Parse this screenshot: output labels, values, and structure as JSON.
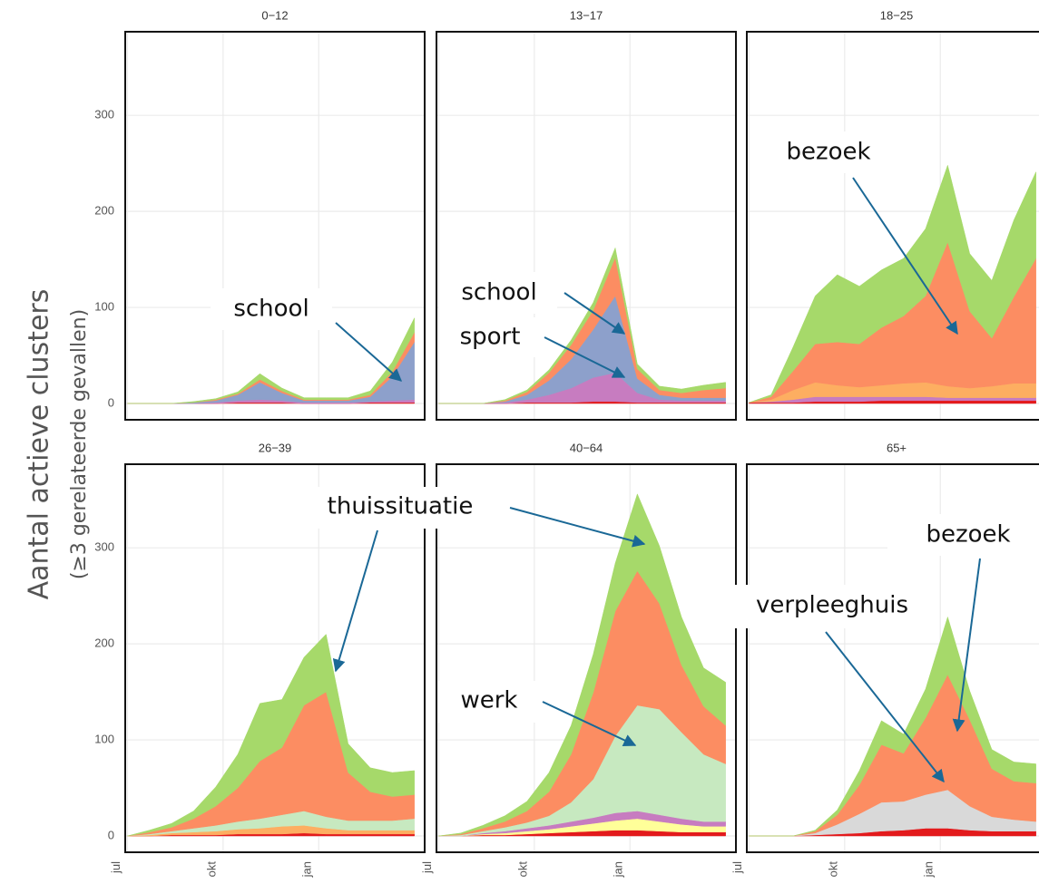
{
  "ylabel": "Aantal actieve clusters",
  "ysublabel": "(≥3 gerelateerde gevallen)",
  "annotations": [
    "school",
    "school",
    "sport",
    "bezoek",
    "thuissituatie",
    "werk",
    "verpleeghuis",
    "bezoek"
  ],
  "chart_data": [
    {
      "type": "area",
      "title": "0−12",
      "x": [
        0,
        3,
        6,
        9,
        12,
        15,
        18,
        21,
        24,
        27,
        30,
        33,
        36,
        39
      ],
      "xlim": [
        -0.3,
        40.4
      ],
      "ylim": [
        -17,
        387
      ],
      "yticks": [
        0,
        100,
        200,
        300
      ],
      "xticks": [
        {
          "value": 0,
          "label": "jul"
        },
        {
          "value": 13,
          "label": "okt"
        },
        {
          "value": 26,
          "label": "jan"
        }
      ],
      "grid": true,
      "series": [
        {
          "color": "#e31a1c",
          "values": [
            0,
            0,
            0,
            0,
            0,
            1,
            1,
            1,
            0,
            0,
            0,
            1,
            1,
            1
          ]
        },
        {
          "name": "sport",
          "color": "#c77cc0",
          "values": [
            0,
            0,
            0,
            0,
            1,
            2,
            3,
            2,
            1,
            1,
            1,
            1,
            2,
            3
          ]
        },
        {
          "name": "school",
          "color": "#8da0cb",
          "values": [
            0,
            0,
            0,
            1,
            2,
            6,
            18,
            8,
            2,
            2,
            2,
            5,
            25,
            60
          ]
        },
        {
          "name": "bezoek",
          "color": "#fc8d62",
          "values": [
            0,
            0,
            0,
            0,
            1,
            1,
            3,
            2,
            1,
            1,
            1,
            2,
            5,
            10
          ]
        },
        {
          "name": "thuissituatie",
          "color": "#a6d96a",
          "values": [
            0,
            0,
            0,
            1,
            1,
            2,
            6,
            3,
            2,
            2,
            2,
            4,
            10,
            15
          ]
        }
      ]
    },
    {
      "type": "area",
      "title": "13−17",
      "x": [
        0,
        3,
        6,
        9,
        12,
        15,
        18,
        21,
        24,
        27,
        30,
        33,
        36,
        39
      ],
      "xlim": [
        -0.3,
        40.4
      ],
      "ylim": [
        -17,
        387
      ],
      "yticks": [
        0,
        100,
        200,
        300
      ],
      "xticks": [
        {
          "value": 0,
          "label": "jul"
        },
        {
          "value": 13,
          "label": "okt"
        },
        {
          "value": 26,
          "label": "jan"
        }
      ],
      "grid": true,
      "series": [
        {
          "color": "#e31a1c",
          "values": [
            0,
            0,
            0,
            0,
            1,
            1,
            1,
            2,
            2,
            1,
            1,
            1,
            1,
            1
          ]
        },
        {
          "name": "sport",
          "color": "#c77cc0",
          "values": [
            0,
            0,
            0,
            1,
            3,
            8,
            15,
            25,
            30,
            10,
            3,
            2,
            2,
            2
          ]
        },
        {
          "name": "school",
          "color": "#8da0cb",
          "values": [
            0,
            0,
            0,
            1,
            5,
            15,
            30,
            50,
            80,
            15,
            5,
            3,
            3,
            3
          ]
        },
        {
          "name": "bezoek",
          "color": "#fc8d62",
          "values": [
            0,
            0,
            0,
            1,
            3,
            8,
            15,
            20,
            40,
            10,
            5,
            5,
            8,
            10
          ]
        },
        {
          "name": "thuissituatie",
          "color": "#a6d96a",
          "values": [
            0,
            0,
            0,
            1,
            2,
            3,
            5,
            8,
            10,
            5,
            4,
            4,
            5,
            6
          ]
        }
      ]
    },
    {
      "type": "area",
      "title": "18−25",
      "x": [
        0,
        3,
        6,
        9,
        12,
        15,
        18,
        21,
        24,
        27,
        30,
        33,
        36,
        39
      ],
      "xlim": [
        -0.3,
        40.4
      ],
      "ylim": [
        -17,
        387
      ],
      "yticks": [
        0,
        100,
        200,
        300
      ],
      "xticks": [
        {
          "value": 0,
          "label": "jul"
        },
        {
          "value": 13,
          "label": "okt"
        },
        {
          "value": 26,
          "label": "jan"
        }
      ],
      "grid": true,
      "series": [
        {
          "color": "#e31a1c",
          "values": [
            1,
            1,
            1,
            2,
            2,
            2,
            3,
            3,
            3,
            3,
            3,
            3,
            3,
            3
          ]
        },
        {
          "name": "sport",
          "color": "#c77cc0",
          "values": [
            0,
            1,
            3,
            5,
            5,
            5,
            4,
            4,
            4,
            3,
            3,
            3,
            3,
            3
          ]
        },
        {
          "color": "#fdae61",
          "values": [
            0,
            2,
            10,
            15,
            12,
            10,
            12,
            14,
            15,
            12,
            10,
            12,
            15,
            15
          ]
        },
        {
          "name": "bezoek",
          "color": "#fc8d62",
          "values": [
            0,
            3,
            20,
            40,
            45,
            45,
            60,
            70,
            90,
            150,
            80,
            50,
            90,
            130
          ]
        },
        {
          "name": "thuissituatie",
          "color": "#a6d96a",
          "values": [
            0,
            2,
            25,
            50,
            70,
            60,
            60,
            60,
            70,
            80,
            60,
            60,
            80,
            90
          ]
        }
      ]
    },
    {
      "type": "area",
      "title": "26−39",
      "x": [
        0,
        3,
        6,
        9,
        12,
        15,
        18,
        21,
        24,
        27,
        30,
        33,
        36,
        39
      ],
      "xlim": [
        -0.3,
        40.4
      ],
      "ylim": [
        -17,
        387
      ],
      "yticks": [
        0,
        100,
        200,
        300
      ],
      "xticks": [
        {
          "value": 0,
          "label": "jul"
        },
        {
          "value": 13,
          "label": "okt"
        },
        {
          "value": 26,
          "label": "jan"
        }
      ],
      "grid": true,
      "series": [
        {
          "color": "#e31a1c",
          "values": [
            0,
            0,
            1,
            1,
            1,
            2,
            2,
            2,
            3,
            2,
            2,
            2,
            2,
            2
          ]
        },
        {
          "color": "#fdae61",
          "values": [
            0,
            1,
            2,
            3,
            4,
            5,
            6,
            8,
            8,
            6,
            4,
            4,
            4,
            4
          ]
        },
        {
          "name": "werk",
          "color": "#c7e9c0",
          "values": [
            0,
            1,
            2,
            4,
            6,
            8,
            10,
            12,
            15,
            12,
            10,
            10,
            10,
            12
          ]
        },
        {
          "name": "bezoek",
          "color": "#fc8d62",
          "values": [
            0,
            2,
            4,
            10,
            20,
            35,
            60,
            70,
            110,
            130,
            50,
            30,
            25,
            25
          ]
        },
        {
          "name": "thuissituatie",
          "color": "#a6d96a",
          "values": [
            0,
            2,
            4,
            8,
            20,
            35,
            60,
            50,
            50,
            60,
            30,
            25,
            25,
            25
          ]
        }
      ]
    },
    {
      "type": "area",
      "title": "40−64",
      "x": [
        0,
        3,
        6,
        9,
        12,
        15,
        18,
        21,
        24,
        27,
        30,
        33,
        36,
        39
      ],
      "xlim": [
        -0.3,
        40.4
      ],
      "ylim": [
        -17,
        387
      ],
      "yticks": [
        0,
        100,
        200,
        300
      ],
      "xticks": [
        {
          "value": 0,
          "label": "jul"
        },
        {
          "value": 13,
          "label": "okt"
        },
        {
          "value": 26,
          "label": "jan"
        }
      ],
      "grid": true,
      "series": [
        {
          "color": "#e31a1c",
          "values": [
            0,
            0,
            1,
            1,
            2,
            3,
            4,
            5,
            6,
            6,
            5,
            4,
            4,
            4
          ]
        },
        {
          "color": "#ffff99",
          "values": [
            0,
            0,
            1,
            2,
            3,
            4,
            6,
            8,
            10,
            12,
            10,
            8,
            6,
            6
          ]
        },
        {
          "name": "sport",
          "color": "#c77cc0",
          "values": [
            0,
            0,
            1,
            2,
            3,
            4,
            5,
            6,
            8,
            8,
            7,
            6,
            5,
            5
          ]
        },
        {
          "name": "werk",
          "color": "#c7e9c0",
          "values": [
            0,
            1,
            2,
            4,
            6,
            10,
            20,
            40,
            80,
            110,
            110,
            90,
            70,
            60
          ]
        },
        {
          "name": "bezoek",
          "color": "#fc8d62",
          "values": [
            0,
            1,
            3,
            6,
            12,
            25,
            50,
            90,
            130,
            140,
            110,
            70,
            50,
            40
          ]
        },
        {
          "name": "thuissituatie",
          "color": "#a6d96a",
          "values": [
            0,
            1,
            3,
            6,
            10,
            20,
            30,
            40,
            50,
            80,
            60,
            50,
            40,
            45
          ]
        }
      ]
    },
    {
      "type": "area",
      "title": "65+",
      "x": [
        0,
        3,
        6,
        9,
        12,
        15,
        18,
        21,
        24,
        27,
        30,
        33,
        36,
        39
      ],
      "xlim": [
        -0.3,
        40.4
      ],
      "ylim": [
        -17,
        387
      ],
      "yticks": [
        0,
        100,
        200,
        300
      ],
      "xticks": [
        {
          "value": 0,
          "label": "jul"
        },
        {
          "value": 13,
          "label": "okt"
        },
        {
          "value": 26,
          "label": "jan"
        }
      ],
      "grid": true,
      "series": [
        {
          "color": "#e31a1c",
          "values": [
            0,
            0,
            0,
            1,
            2,
            3,
            5,
            6,
            8,
            8,
            6,
            5,
            5,
            5
          ]
        },
        {
          "name": "verpleeghuis",
          "color": "#d9d9d9",
          "values": [
            0,
            0,
            0,
            2,
            10,
            20,
            30,
            30,
            35,
            40,
            25,
            15,
            12,
            10
          ]
        },
        {
          "name": "bezoek",
          "color": "#fc8d62",
          "values": [
            0,
            0,
            0,
            2,
            10,
            30,
            60,
            50,
            80,
            120,
            90,
            50,
            40,
            40
          ]
        },
        {
          "name": "thuissituatie",
          "color": "#a6d96a",
          "values": [
            0,
            0,
            0,
            1,
            5,
            15,
            25,
            20,
            30,
            60,
            30,
            20,
            20,
            20
          ]
        }
      ]
    }
  ]
}
